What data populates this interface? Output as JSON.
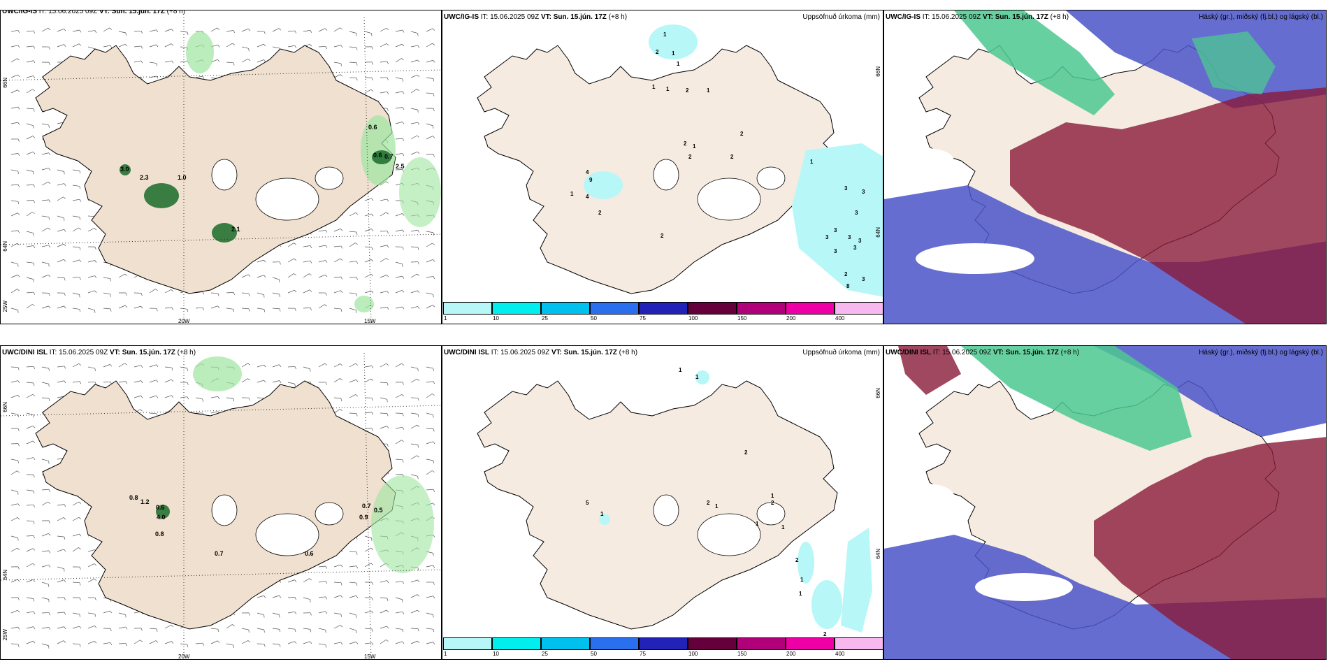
{
  "row_top": {
    "wind_panel": {
      "model": "UWC/IG-IS",
      "it_label": "IT:",
      "it_value": "15.06.2025 09Z",
      "vt_label": "VT:",
      "vt_value": "Sun. 15.jún. 17Z",
      "lead": "(+8 h)",
      "lat_labels": [
        "66N",
        "64N"
      ],
      "lon_labels": [
        "25W",
        "20W",
        "15W"
      ],
      "values": [
        "0.6",
        "3.0",
        "2.3",
        "1.0",
        "0.6",
        "0.7",
        "2.5",
        "2.1"
      ]
    },
    "precip_panel": {
      "model": "UWC/IG-IS",
      "it_label": "IT:",
      "it_value": "15.06.2025 09Z",
      "vt_label": "VT:",
      "vt_value": "Sun. 15.jún. 17Z",
      "lead": "(+8 h)",
      "field": "Uppsöfnuð úrkoma (mm)",
      "side_labels": [
        "66N",
        "64N"
      ],
      "values": [
        "1",
        "2",
        "1",
        "1",
        "2",
        "1",
        "1",
        "1",
        "2",
        "1",
        "2",
        "2",
        "2",
        "4",
        "9",
        "1",
        "4",
        "2",
        "2",
        "1",
        "3",
        "3",
        "3",
        "3",
        "3",
        "3",
        "3",
        "3",
        "3",
        "2",
        "3",
        "8"
      ]
    },
    "cloud_panel": {
      "model": "UWC/IG-IS",
      "it_label": "IT:",
      "it_value": "15.06.2025 09Z",
      "vt_label": "VT:",
      "vt_value": "Sun. 15.jún. 17Z",
      "lead": "(+8 h)",
      "field": "Háský (gr.), miðský (fj.bl.) og lágský (bl.)"
    }
  },
  "row_bottom": {
    "wind_panel": {
      "model": "UWC/DINI ISL",
      "it_label": "IT:",
      "it_value": "15.06.2025 09Z",
      "vt_label": "VT:",
      "vt_value": "Sun. 15.jún. 17Z",
      "lead": "(+8 h)",
      "lat_labels": [
        "66N",
        "64N"
      ],
      "lon_labels": [
        "25W",
        "20W",
        "15W"
      ],
      "values": [
        "0.8",
        "1.2",
        "0.6",
        "4.0",
        "0.8",
        "0.7",
        "0.6",
        "0.7",
        "0.9",
        "0.5"
      ]
    },
    "precip_panel": {
      "model": "UWC/DINI ISL",
      "it_label": "IT:",
      "it_value": "15.06.2025 09Z",
      "vt_label": "VT:",
      "vt_value": "Sun. 15.jún. 17Z",
      "lead": "(+8 h)",
      "field": "Uppsöfnuð úrkoma (mm)",
      "side_labels": [
        "66N",
        "64N"
      ],
      "values": [
        "1",
        "1",
        "5",
        "1",
        "2",
        "1",
        "2",
        "1",
        "2",
        "1",
        "1",
        "2",
        "1",
        "1",
        "2"
      ]
    },
    "cloud_panel": {
      "model": "UWC/DINI ISL",
      "it_label": "IT:",
      "it_value": "15.06.2025 09Z",
      "vt_label": "VT:",
      "vt_value": "Sun. 15.jún. 17Z",
      "lead": "(+8 h)",
      "field": "Háský (gr.), miðský (fj.bl.) og lágský (bl.)"
    }
  },
  "colorbar": {
    "labels": [
      "1",
      "10",
      "25",
      "50",
      "75",
      "100",
      "150",
      "200",
      "400"
    ],
    "colors": [
      "#b7f7f7",
      "#00eeee",
      "#00c0ee",
      "#2a70ee",
      "#2222b8",
      "#66003c",
      "#b0007a",
      "#ee00a6",
      "#f6b8ee"
    ]
  },
  "colors": {
    "land": "#f5ebe0",
    "land_wind": "#efe0cf",
    "sea": "#ffffff",
    "precip_light": "#b7f7f7",
    "wind_green": "#9ee6a0",
    "wind_dark": "#1a6b2a",
    "cloud_high": "#8a1a3a",
    "cloud_mid": "#4a55c8",
    "cloud_low": "#4cc890"
  }
}
